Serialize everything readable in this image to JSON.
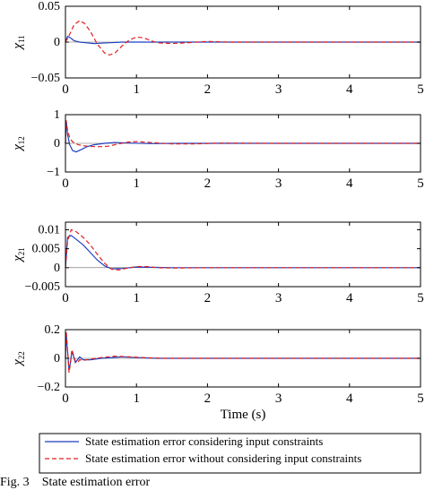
{
  "caption": {
    "label": "Fig. 3",
    "text": "State estimation error"
  },
  "colors": {
    "constrained": "#1f3fbf",
    "unconstrained": "#e0201e"
  },
  "legend": {
    "placement": "bottom",
    "entries": [
      {
        "label": "State estimation  error considering input constraints",
        "style": "solid"
      },
      {
        "label": "State estimation error without considering input constraints",
        "style": "dashed"
      }
    ]
  },
  "chart_data": [
    {
      "type": "line",
      "ylabel": "χ11",
      "ylabel_main": "χ",
      "ylabel_sub": "11",
      "xlabel": "",
      "xlim": [
        0,
        5
      ],
      "ylim": [
        -0.05,
        0.05
      ],
      "xticks": [
        "0",
        "1",
        "2",
        "3",
        "4",
        "5"
      ],
      "yticks": [
        {
          "v": 0.05,
          "t": "0.05"
        },
        {
          "v": 0,
          "t": "0"
        },
        {
          "v": -0.05,
          "t": "−0.05"
        }
      ],
      "series": [
        {
          "x": [
            0,
            0.03,
            0.07,
            0.12,
            0.2,
            0.3,
            0.4,
            0.5,
            0.6,
            0.8,
            1.0,
            1.2,
            1.5,
            2,
            3,
            5
          ],
          "y": [
            0,
            0.008,
            0.006,
            0.002,
            0.0,
            -0.001,
            -0.002,
            -0.0015,
            -0.001,
            0,
            0,
            0,
            0,
            0,
            0,
            0
          ]
        },
        {
          "x": [
            0,
            0.03,
            0.08,
            0.12,
            0.2,
            0.27,
            0.35,
            0.45,
            0.55,
            0.62,
            0.7,
            0.8,
            0.9,
            1.0,
            1.1,
            1.2,
            1.3,
            1.5,
            1.7,
            2.0,
            2.3,
            3,
            5
          ],
          "y": [
            0,
            0.005,
            0.015,
            0.024,
            0.03,
            0.026,
            0.015,
            -0.003,
            -0.015,
            -0.018,
            -0.015,
            -0.005,
            0.003,
            0.007,
            0.006,
            0.002,
            -0.001,
            -0.002,
            -0.001,
            0.001,
            0,
            0,
            0
          ]
        }
      ]
    },
    {
      "type": "line",
      "ylabel": "χ12",
      "ylabel_main": "χ",
      "ylabel_sub": "12",
      "xlabel": "",
      "xlim": [
        0,
        5
      ],
      "ylim": [
        -1,
        1
      ],
      "xticks": [
        "0",
        "1",
        "2",
        "3",
        "4",
        "5"
      ],
      "yticks": [
        {
          "v": 1,
          "t": "1"
        },
        {
          "v": 0,
          "t": "0"
        },
        {
          "v": -1,
          "t": "−1"
        }
      ],
      "series": [
        {
          "x": [
            0,
            0.01,
            0.03,
            0.06,
            0.1,
            0.15,
            0.22,
            0.3,
            0.4,
            0.55,
            0.7,
            0.9,
            1.2,
            1.6,
            2,
            3,
            5
          ],
          "y": [
            0,
            0.8,
            0.3,
            -0.05,
            -0.25,
            -0.3,
            -0.22,
            -0.12,
            -0.05,
            0,
            0.03,
            0.01,
            -0.01,
            0,
            0,
            0,
            0
          ]
        },
        {
          "x": [
            0,
            0.01,
            0.03,
            0.06,
            0.1,
            0.18,
            0.3,
            0.45,
            0.6,
            0.75,
            0.9,
            1.0,
            1.2,
            1.5,
            1.8,
            2.2,
            3,
            5
          ],
          "y": [
            0,
            0.8,
            0.45,
            0.2,
            0.05,
            -0.05,
            -0.1,
            -0.12,
            -0.1,
            -0.02,
            0.05,
            0.06,
            0.03,
            -0.02,
            -0.02,
            0.01,
            0,
            0
          ]
        }
      ]
    },
    {
      "type": "line",
      "ylabel": "χ21",
      "ylabel_main": "χ",
      "ylabel_sub": "21",
      "xlabel": "",
      "xlim": [
        0,
        5
      ],
      "ylim": [
        -0.005,
        0.012
      ],
      "xticks": [
        "0",
        "1",
        "2",
        "3",
        "4",
        "5"
      ],
      "yticks": [
        {
          "v": 0.01,
          "t": "0.01"
        },
        {
          "v": 0.005,
          "t": "0.005"
        },
        {
          "v": 0,
          "t": "0"
        },
        {
          "v": -0.005,
          "t": "−0.005"
        }
      ],
      "series": [
        {
          "x": [
            0,
            0.03,
            0.08,
            0.15,
            0.25,
            0.35,
            0.45,
            0.55,
            0.65,
            0.8,
            1.0,
            1.2,
            1.5,
            2,
            3,
            5
          ],
          "y": [
            0,
            0.008,
            0.0085,
            0.0075,
            0.006,
            0.004,
            0.002,
            0.0005,
            -0.0003,
            -0.0002,
            0.0002,
            0.0001,
            0,
            0,
            0,
            0
          ]
        },
        {
          "x": [
            0,
            0.03,
            0.08,
            0.15,
            0.25,
            0.35,
            0.45,
            0.55,
            0.65,
            0.75,
            0.85,
            1.0,
            1.15,
            1.3,
            1.5,
            2,
            3,
            5
          ],
          "y": [
            0,
            0.007,
            0.01,
            0.0095,
            0.008,
            0.006,
            0.0035,
            0.0012,
            -0.0004,
            -0.0006,
            -0.0002,
            0.0003,
            0.0003,
            0,
            -0.0001,
            0,
            0,
            0
          ]
        }
      ]
    },
    {
      "type": "line",
      "ylabel": "χ22",
      "ylabel_main": "χ",
      "ylabel_sub": "22",
      "xlabel": "Time (s)",
      "xlim": [
        0,
        5
      ],
      "ylim": [
        -0.2,
        0.2
      ],
      "xticks": [
        "0",
        "1",
        "2",
        "3",
        "4",
        "5"
      ],
      "yticks": [
        {
          "v": 0.2,
          "t": "0.2"
        },
        {
          "v": 0,
          "t": "0"
        },
        {
          "v": -0.2,
          "t": "−0.2"
        }
      ],
      "series": [
        {
          "x": [
            0,
            0.01,
            0.03,
            0.05,
            0.07,
            0.09,
            0.11,
            0.14,
            0.17,
            0.2,
            0.25,
            0.35,
            0.5,
            0.8,
            1.0,
            1.3,
            2,
            3,
            5
          ],
          "y": [
            0,
            0.17,
            0.05,
            -0.08,
            -0.03,
            0.05,
            0.02,
            -0.03,
            -0.01,
            0.01,
            -0.01,
            -0.01,
            0,
            0.01,
            0.005,
            0,
            0,
            0,
            0
          ]
        },
        {
          "x": [
            0,
            0.01,
            0.03,
            0.05,
            0.07,
            0.09,
            0.11,
            0.14,
            0.17,
            0.2,
            0.25,
            0.35,
            0.5,
            0.7,
            0.9,
            1.1,
            1.4,
            2,
            3,
            5
          ],
          "y": [
            0,
            0.19,
            0.06,
            -0.1,
            -0.04,
            0.06,
            0.03,
            -0.02,
            -0.03,
            -0.01,
            -0.015,
            -0.005,
            0.005,
            0.015,
            0.01,
            0.005,
            0,
            0,
            0,
            0
          ]
        }
      ]
    }
  ]
}
